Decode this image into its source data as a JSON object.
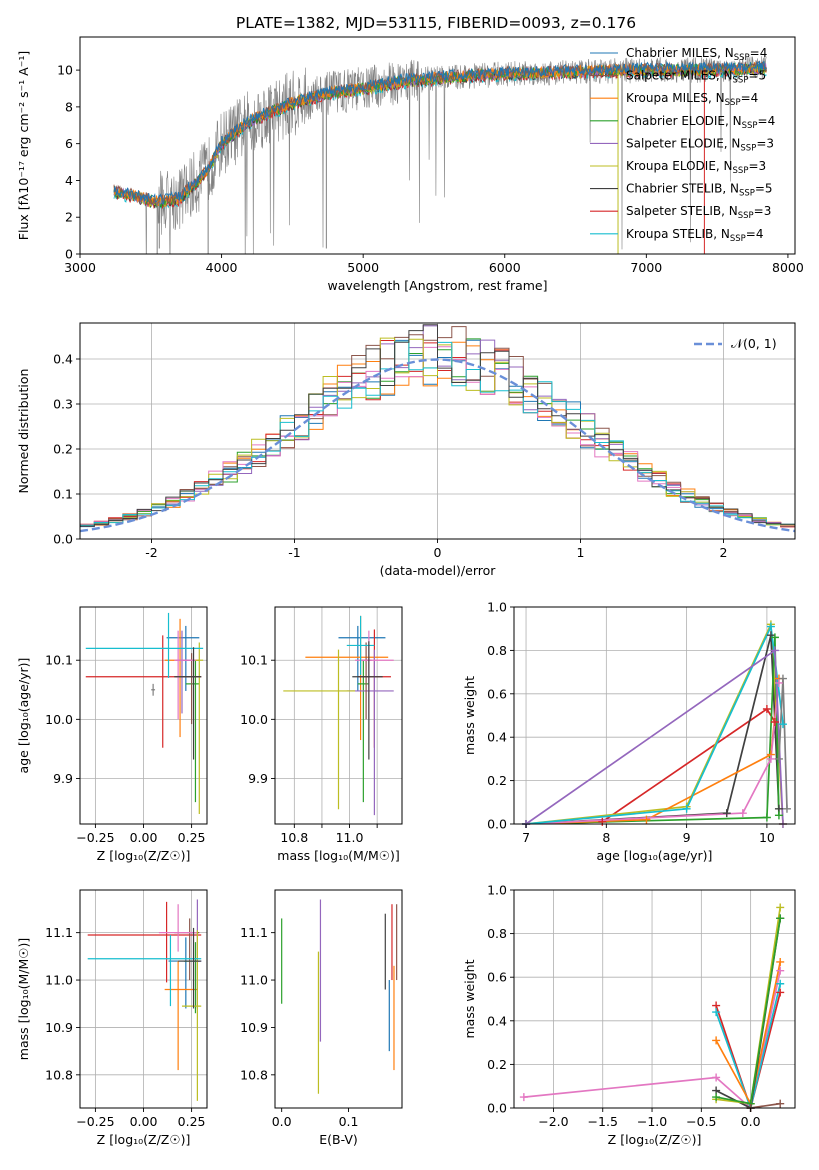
{
  "title": "PLATE=1382, MJD=53115, FIBERID=0093, z=0.176",
  "colors": {
    "gray": "#808080",
    "blue": "#1f77b4",
    "orange": "#ff7f0e",
    "green": "#2ca02c",
    "red": "#d62728",
    "purple": "#9467bd",
    "brown": "#8c564b",
    "pink": "#e377c2",
    "olive": "#bcbd22",
    "cyan": "#17becf",
    "normal": "#6a8fd8",
    "grid": "#b0b0b0"
  },
  "chart_data": [
    {
      "id": "spectrum",
      "type": "line",
      "xlabel": "wavelength [Angstrom, rest frame]",
      "ylabel": "Flux [fλ10⁻¹⁷ erg cm⁻² s⁻¹ A⁻¹]",
      "xlim": [
        3000,
        8050
      ],
      "ylim": [
        0,
        11.8
      ],
      "xticks": [
        3000,
        4000,
        5000,
        6000,
        7000,
        8000
      ],
      "yticks": [
        0,
        2,
        4,
        6,
        8,
        10
      ],
      "grid": false,
      "legend_position": "right",
      "continuum": {
        "x": [
          3240,
          3400,
          3550,
          3700,
          3900,
          4000,
          4200,
          4500,
          4800,
          5000,
          5300,
          5600,
          6000,
          6500,
          7000,
          7500,
          7850
        ],
        "y": [
          3.4,
          3.1,
          2.8,
          3.0,
          4.5,
          6.0,
          7.2,
          8.2,
          8.8,
          9.0,
          9.4,
          9.6,
          9.8,
          9.9,
          10.0,
          10.0,
          10.1
        ]
      },
      "legend": [
        {
          "label": "Chabrier MILES, N",
          "sub": "SSP",
          "suffix": "=4",
          "color": "#1f77b4"
        },
        {
          "label": "Salpeter MILES, N",
          "sub": "SSP",
          "suffix": "=5",
          "color": "#8c564b"
        },
        {
          "label": "Kroupa MILES, N",
          "sub": "SSP",
          "suffix": "=4",
          "color": "#ff7f0e"
        },
        {
          "label": "Chabrier ELODIE, N",
          "sub": "SSP",
          "suffix": "=4",
          "color": "#2ca02c"
        },
        {
          "label": "Salpeter ELODIE, N",
          "sub": "SSP",
          "suffix": "=3",
          "color": "#9467bd"
        },
        {
          "label": "Kroupa ELODIE, N",
          "sub": "SSP",
          "suffix": "=3",
          "color": "#bcbd22"
        },
        {
          "label": "Chabrier STELIB, N",
          "sub": "SSP",
          "suffix": "=5",
          "color": "#404040"
        },
        {
          "label": "Salpeter STELIB, N",
          "sub": "SSP",
          "suffix": "=3",
          "color": "#d62728"
        },
        {
          "label": "Kroupa STELIB, N",
          "sub": "SSP",
          "suffix": "=4",
          "color": "#17becf"
        }
      ]
    },
    {
      "id": "residuals",
      "type": "line",
      "xlabel": "(data-model)/error",
      "ylabel": "Normed distribution",
      "xlim": [
        -2.5,
        2.5
      ],
      "ylim": [
        0,
        0.48
      ],
      "xticks": [
        -2,
        -1,
        0,
        1,
        2
      ],
      "yticks": [
        0.0,
        0.1,
        0.2,
        0.3,
        0.4
      ],
      "grid": true,
      "legend": [
        {
          "label": "𝒩(0, 1)"
        }
      ],
      "legend_position": "top-right"
    },
    {
      "id": "age-vs-Z",
      "type": "scatter",
      "xlabel": "Z [log₁₀(Z/Z☉)]",
      "ylabel": "age  [log₁₀(age/yr)]",
      "xlim": [
        -0.33,
        0.33
      ],
      "ylim": [
        9.823,
        10.19
      ],
      "xticks": [
        -0.25,
        0.0,
        0.25
      ],
      "xticklabels": [
        "−0.25",
        "0.00",
        "0.25"
      ],
      "yticks": [
        9.9,
        10.0,
        10.1
      ],
      "grid": true,
      "points": [
        {
          "color": "#1f77b4",
          "x": 0.22,
          "y": 10.138,
          "xerr": [
            0.1,
            0.07
          ],
          "yerr": [
            0.09,
            0.02
          ]
        },
        {
          "color": "#ff7f0e",
          "x": 0.19,
          "y": 10.1,
          "xerr": [
            0.08,
            0.1
          ],
          "yerr": [
            0.13,
            0.07
          ]
        },
        {
          "color": "#2ca02c",
          "x": 0.27,
          "y": 10.06,
          "xerr": [
            0.05,
            0.02
          ],
          "yerr": [
            0.2,
            0.04
          ]
        },
        {
          "color": "#d62728",
          "x": 0.1,
          "y": 10.072,
          "xerr": [
            0.4,
            0.2
          ],
          "yerr": [
            0.12,
            0.07
          ]
        },
        {
          "color": "#9467bd",
          "x": 0.2,
          "y": 10.1,
          "xerr": [
            0.03,
            0.07
          ],
          "yerr": [
            0.09,
            0.05
          ]
        },
        {
          "color": "#8c564b",
          "x": 0.25,
          "y": 10.072,
          "xerr": [
            0.08,
            0.05
          ],
          "yerr": [
            0.08,
            0.04
          ]
        },
        {
          "color": "#e377c2",
          "x": 0.18,
          "y": 10.1,
          "xerr": [
            0.02,
            0.1
          ],
          "yerr": [
            0.1,
            0.05
          ]
        },
        {
          "color": "#bcbd22",
          "x": 0.29,
          "y": 10.1,
          "xerr": [
            0.02,
            0.02
          ],
          "yerr": [
            0.26,
            0.03
          ]
        },
        {
          "color": "#17becf",
          "x": 0.13,
          "y": 10.12,
          "xerr": [
            0.43,
            0.18
          ],
          "yerr": [
            0.05,
            0.06
          ]
        },
        {
          "color": "#404040",
          "x": 0.26,
          "y": 10.072,
          "xerr": [
            0.1,
            0.04
          ],
          "yerr": [
            0.14,
            0.05
          ]
        },
        {
          "color": "#7f7f7f",
          "x": 0.05,
          "y": 10.05,
          "xerr": [
            0.01,
            0.01
          ],
          "yerr": [
            0.01,
            0.01
          ]
        }
      ]
    },
    {
      "id": "age-vs-mass",
      "type": "scatter",
      "xlabel": "mass [log₁₀(M/M☉)]",
      "ylabel": "",
      "xlim": [
        10.73,
        11.19
      ],
      "ylim": [
        9.823,
        10.19
      ],
      "xticks": [
        10.8,
        10.9,
        11.0,
        11.1
      ],
      "xticklabels": [
        "10.8",
        "",
        "11.0",
        ""
      ],
      "yticks": [
        9.9,
        10.0,
        10.1
      ],
      "grid": true,
      "points": [
        {
          "color": "#1f77b4",
          "x": 11.03,
          "y": 10.138,
          "xerr": [
            0.07,
            0.1
          ],
          "yerr": [
            0.09,
            0.02
          ]
        },
        {
          "color": "#ff7f0e",
          "x": 11.04,
          "y": 10.105,
          "xerr": [
            0.2,
            0.1
          ],
          "yerr": [
            0.14,
            0.07
          ]
        },
        {
          "color": "#2ca02c",
          "x": 11.05,
          "y": 10.06,
          "xerr": [
            0.02,
            0.02
          ],
          "yerr": [
            0.2,
            0.04
          ]
        },
        {
          "color": "#d62728",
          "x": 11.09,
          "y": 10.072,
          "xerr": [
            0.06,
            0.06
          ],
          "yerr": [
            0.12,
            0.08
          ]
        },
        {
          "color": "#9467bd",
          "x": 11.09,
          "y": 10.048,
          "xerr": [
            0.1,
            0.07
          ],
          "yerr": [
            0.21,
            0.07
          ]
        },
        {
          "color": "#8c564b",
          "x": 11.06,
          "y": 10.1,
          "xerr": [
            0.02,
            0.02
          ],
          "yerr": [
            0.1,
            0.03
          ]
        },
        {
          "color": "#e377c2",
          "x": 11.07,
          "y": 10.1,
          "xerr": [
            0.05,
            0.09
          ],
          "yerr": [
            0.1,
            0.05
          ]
        },
        {
          "color": "#bcbd22",
          "x": 10.96,
          "y": 10.048,
          "xerr": [
            0.2,
            0.06
          ],
          "yerr": [
            0.2,
            0.07
          ]
        },
        {
          "color": "#17becf",
          "x": 11.04,
          "y": 10.125,
          "xerr": [
            0.05,
            0.05
          ],
          "yerr": [
            0.05,
            0.05
          ]
        },
        {
          "color": "#404040",
          "x": 11.07,
          "y": 10.072,
          "xerr": [
            0.06,
            0.05
          ],
          "yerr": [
            0.14,
            0.06
          ]
        }
      ]
    },
    {
      "id": "mass-weight-vs-age",
      "type": "line",
      "xlabel": "age  [log₁₀(age/yr)]",
      "ylabel": "mass weight",
      "xlim": [
        6.85,
        10.35
      ],
      "ylim": [
        0,
        1.0
      ],
      "xticks": [
        7,
        8,
        9,
        10
      ],
      "yticks": [
        0.0,
        0.2,
        0.4,
        0.6,
        0.8,
        1.0
      ],
      "grid": true,
      "series": [
        {
          "color": "#d62728",
          "x": [
            7.0,
            7.95,
            10.0,
            10.1
          ],
          "y": [
            0.0,
            0.01,
            0.53,
            0.47
          ]
        },
        {
          "color": "#bcbd22",
          "x": [
            7.0,
            9.0,
            10.05,
            10.2
          ],
          "y": [
            0.0,
            0.08,
            0.92,
            0.0
          ]
        },
        {
          "color": "#404040",
          "x": [
            7.0,
            9.5,
            10.05,
            10.15
          ],
          "y": [
            0.0,
            0.05,
            0.87,
            0.07
          ]
        },
        {
          "color": "#2ca02c",
          "x": [
            7.0,
            10.0,
            10.1,
            10.15
          ],
          "y": [
            0.0,
            0.03,
            0.86,
            0.04
          ]
        },
        {
          "color": "#ff7f0e",
          "x": [
            7.0,
            8.5,
            10.05,
            10.15
          ],
          "y": [
            0.0,
            0.02,
            0.32,
            0.67
          ]
        },
        {
          "color": "#e377c2",
          "x": [
            7.0,
            9.7,
            10.05,
            10.15
          ],
          "y": [
            0.0,
            0.05,
            0.3,
            0.65
          ]
        },
        {
          "color": "#17becf",
          "x": [
            7.0,
            9.0,
            10.05,
            10.2
          ],
          "y": [
            0.0,
            0.07,
            0.91,
            0.46
          ]
        },
        {
          "color": "#9467bd",
          "x": [
            7.0,
            10.1,
            10.2
          ],
          "y": [
            0.0,
            0.8,
            0.0
          ]
        },
        {
          "color": "#7f7f7f",
          "x": [
            10.15,
            10.2,
            10.25
          ],
          "y": [
            0.3,
            0.67,
            0.07
          ]
        }
      ]
    },
    {
      "id": "mass-vs-Z",
      "type": "scatter",
      "xlabel": "Z [log₁₀(Z/Z☉)]",
      "ylabel": "mass [log₁₀(M/M☉)]",
      "xlim": [
        -0.33,
        0.33
      ],
      "ylim": [
        10.73,
        11.19
      ],
      "xticks": [
        -0.25,
        0.0,
        0.25
      ],
      "xticklabels": [
        "−0.25",
        "0.00",
        "0.25"
      ],
      "yticks": [
        10.8,
        10.9,
        11.0,
        11.1
      ],
      "grid": true,
      "points": [
        {
          "color": "#1f77b4",
          "x": 0.22,
          "y": 11.04,
          "xerr": [
            0.09,
            0.08
          ],
          "yerr": [
            0.1,
            0.05
          ]
        },
        {
          "color": "#ff7f0e",
          "x": 0.18,
          "y": 10.98,
          "xerr": [
            0.07,
            0.1
          ],
          "yerr": [
            0.17,
            0.06
          ]
        },
        {
          "color": "#2ca02c",
          "x": 0.27,
          "y": 11.04,
          "xerr": [
            0.06,
            0.02
          ],
          "yerr": [
            0.11,
            0.04
          ]
        },
        {
          "color": "#d62728",
          "x": 0.12,
          "y": 11.095,
          "xerr": [
            0.41,
            0.18
          ],
          "yerr": [
            0.1,
            0.07
          ]
        },
        {
          "color": "#9467bd",
          "x": 0.28,
          "y": 11.04,
          "xerr": [
            0.02,
            0.02
          ],
          "yerr": [
            0.1,
            0.13
          ]
        },
        {
          "color": "#8c564b",
          "x": 0.24,
          "y": 11.1,
          "xerr": [
            0.08,
            0.05
          ],
          "yerr": [
            0.1,
            0.03
          ]
        },
        {
          "color": "#e377c2",
          "x": 0.18,
          "y": 11.1,
          "xerr": [
            0.1,
            0.1
          ],
          "yerr": [
            0.04,
            0.06
          ]
        },
        {
          "color": "#bcbd22",
          "x": 0.28,
          "y": 10.945,
          "xerr": [
            0.08,
            0.02
          ],
          "yerr": [
            0.2,
            0.16
          ]
        },
        {
          "color": "#17becf",
          "x": 0.14,
          "y": 11.045,
          "xerr": [
            0.43,
            0.16
          ],
          "yerr": [
            0.1,
            0.05
          ]
        },
        {
          "color": "#404040",
          "x": 0.26,
          "y": 11.04,
          "xerr": [
            0.08,
            0.04
          ],
          "yerr": [
            0.1,
            0.07
          ]
        }
      ]
    },
    {
      "id": "mass-vs-EBV",
      "type": "scatter",
      "xlabel": "E(B-V)",
      "ylabel": "",
      "xlim": [
        -0.01,
        0.18
      ],
      "ylim": [
        10.73,
        11.19
      ],
      "xticks": [
        0.0,
        0.1
      ],
      "xticklabels": [
        "0.0",
        "0.1"
      ],
      "yticks": [
        10.8,
        10.9,
        11.0,
        11.1
      ],
      "grid": false,
      "points": [
        {
          "color": "#2ca02c",
          "x": 0.0,
          "y": 11.04,
          "xerr": [
            0,
            0
          ],
          "yerr": [
            0.09,
            0.09
          ]
        },
        {
          "color": "#bcbd22",
          "x": 0.055,
          "y": 10.91,
          "xerr": [
            0,
            0
          ],
          "yerr": [
            0.15,
            0.15
          ]
        },
        {
          "color": "#9467bd",
          "x": 0.058,
          "y": 11.03,
          "xerr": [
            0,
            0
          ],
          "yerr": [
            0.16,
            0.14
          ]
        },
        {
          "color": "#404040",
          "x": 0.155,
          "y": 11.06,
          "xerr": [
            0,
            0
          ],
          "yerr": [
            0.08,
            0.08
          ]
        },
        {
          "color": "#1f77b4",
          "x": 0.161,
          "y": 10.95,
          "xerr": [
            0,
            0
          ],
          "yerr": [
            0.1,
            0.05
          ]
        },
        {
          "color": "#d62728",
          "x": 0.165,
          "y": 11.08,
          "xerr": [
            0,
            0
          ],
          "yerr": [
            0.08,
            0.08
          ]
        },
        {
          "color": "#ff7f0e",
          "x": 0.168,
          "y": 10.93,
          "xerr": [
            0,
            0
          ],
          "yerr": [
            0.12,
            0.1
          ]
        },
        {
          "color": "#8c564b",
          "x": 0.172,
          "y": 11.08,
          "xerr": [
            0,
            0
          ],
          "yerr": [
            0.08,
            0.08
          ]
        }
      ]
    },
    {
      "id": "mass-weight-vs-Z",
      "type": "line",
      "xlabel": "Z [log₁₀(Z/Z☉)]",
      "ylabel": "mass weight",
      "xlim": [
        -2.4,
        0.45
      ],
      "ylim": [
        0,
        1.0
      ],
      "xticks": [
        -2.0,
        -1.5,
        -1.0,
        -0.5,
        0.0
      ],
      "xticklabels": [
        "−2.0",
        "−1.5",
        "−1.0",
        "−0.5",
        "0.0"
      ],
      "yticks": [
        0.0,
        0.2,
        0.4,
        0.6,
        0.8,
        1.0
      ],
      "grid": true,
      "series": [
        {
          "color": "#e377c2",
          "x": [
            -2.3,
            -0.35,
            0.0,
            0.3
          ],
          "y": [
            0.05,
            0.14,
            0.0,
            0.63
          ]
        },
        {
          "color": "#d62728",
          "x": [
            -0.35,
            0.0,
            0.3
          ],
          "y": [
            0.47,
            0.0,
            0.53
          ]
        },
        {
          "color": "#17becf",
          "x": [
            -0.35,
            0.0,
            0.3
          ],
          "y": [
            0.44,
            0.0,
            0.57
          ]
        },
        {
          "color": "#ff7f0e",
          "x": [
            -0.35,
            0.0,
            0.3
          ],
          "y": [
            0.31,
            0.02,
            0.67
          ]
        },
        {
          "color": "#404040",
          "x": [
            -0.35,
            0.0,
            0.3
          ],
          "y": [
            0.08,
            0.0,
            0.87
          ]
        },
        {
          "color": "#bcbd22",
          "x": [
            -0.35,
            0.0,
            0.3
          ],
          "y": [
            0.04,
            0.02,
            0.92
          ]
        },
        {
          "color": "#2ca02c",
          "x": [
            -0.35,
            0.0,
            0.3
          ],
          "y": [
            0.05,
            0.02,
            0.87
          ]
        },
        {
          "color": "#8c564b",
          "x": [
            0.0,
            0.3
          ],
          "y": [
            0.0,
            0.02
          ]
        }
      ]
    }
  ]
}
